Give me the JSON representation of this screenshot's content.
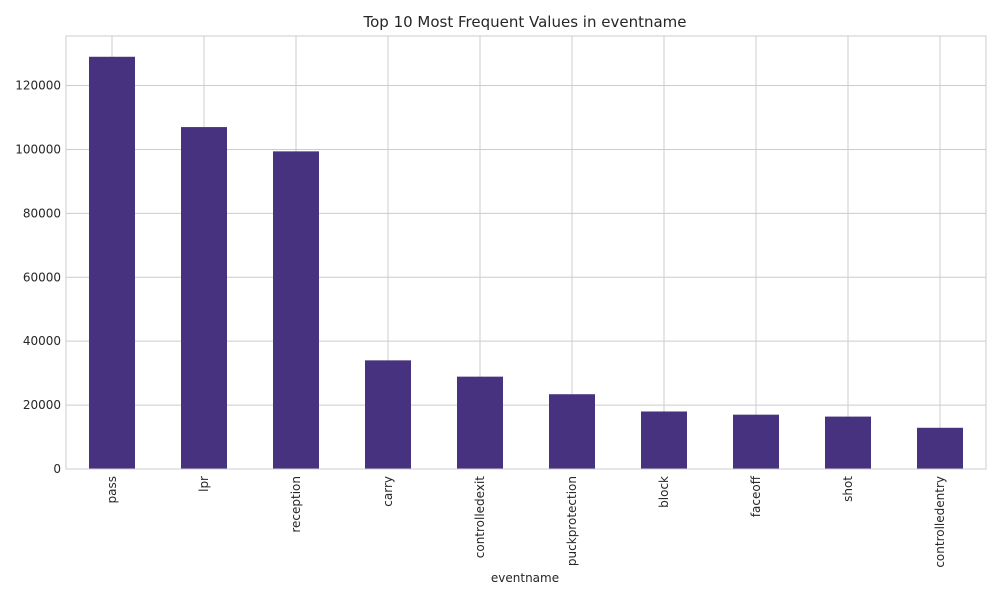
{
  "chart_data": {
    "type": "bar",
    "title": "Top 10 Most Frequent Values in eventname",
    "xlabel": "eventname",
    "ylabel": "",
    "categories": [
      "pass",
      "lpr",
      "reception",
      "carry",
      "controlledexit",
      "puckprotection",
      "block",
      "faceoff",
      "shot",
      "controlledentry"
    ],
    "values": [
      129000,
      107000,
      99400,
      34000,
      28900,
      23400,
      18000,
      17000,
      16400,
      12900
    ],
    "ylim": [
      0,
      135500
    ],
    "yticks": [
      0,
      20000,
      40000,
      60000,
      80000,
      100000,
      120000
    ],
    "grid": true,
    "bar_color": "#46327e"
  }
}
